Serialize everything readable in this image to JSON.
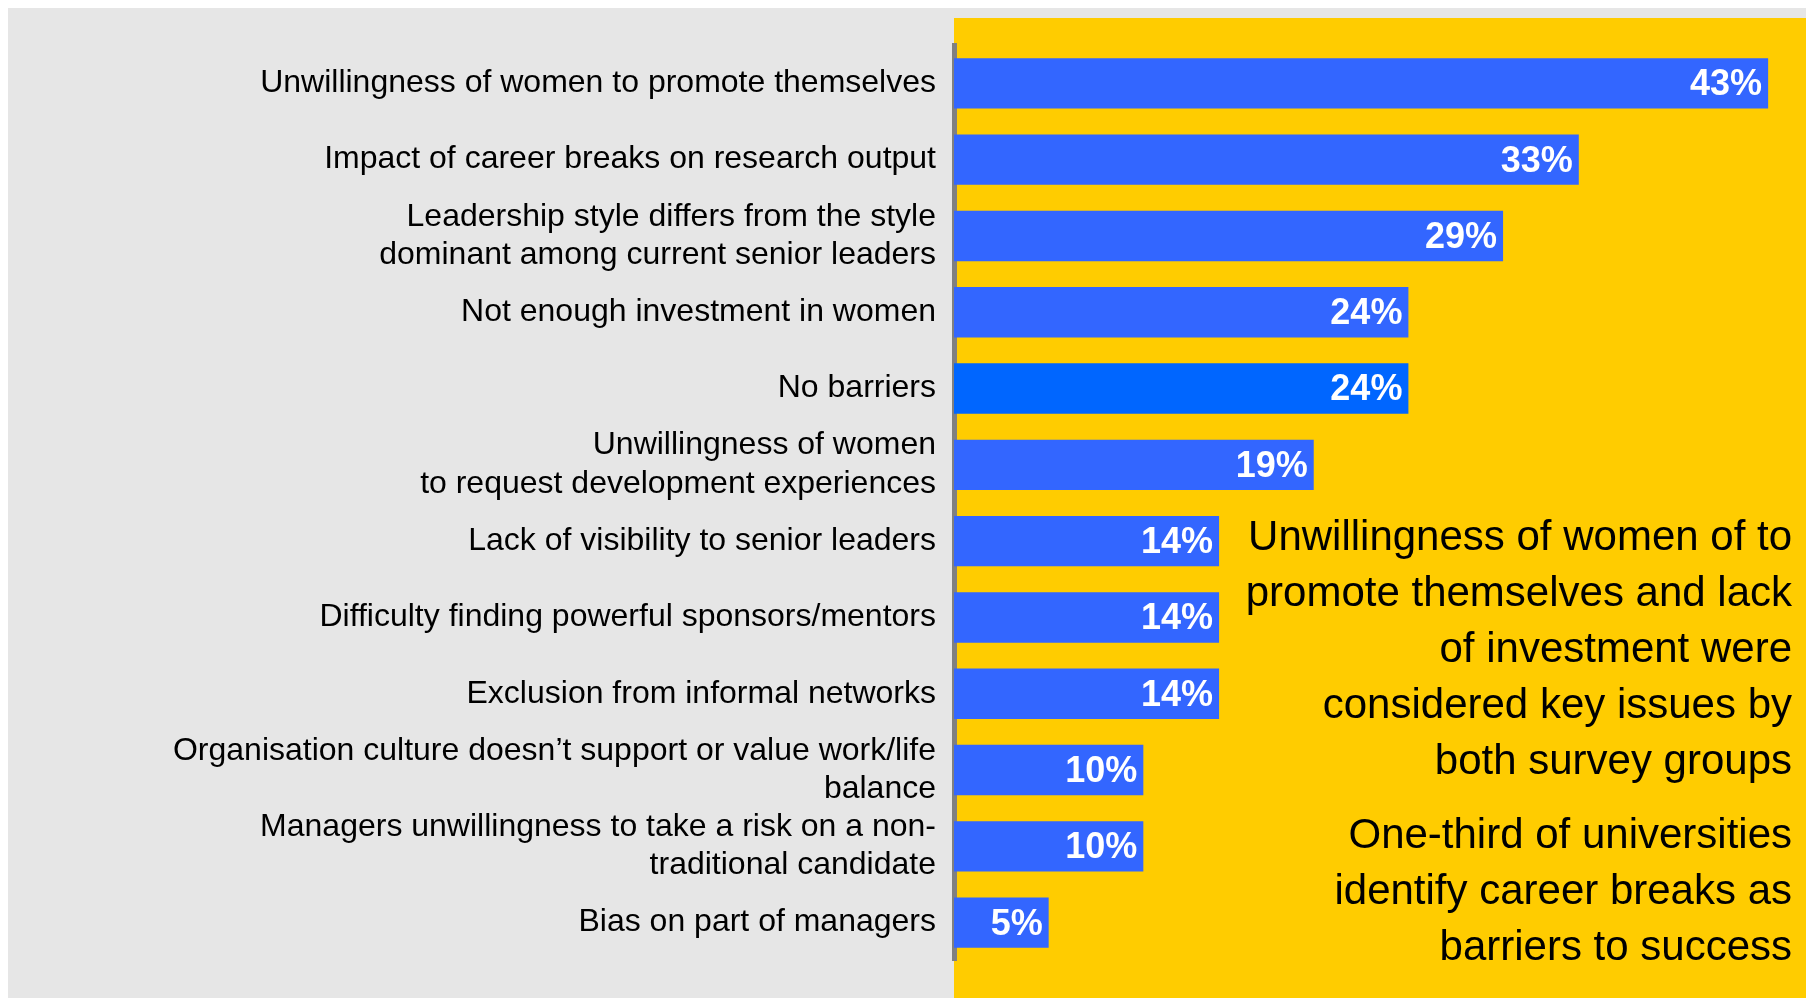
{
  "chart_data": {
    "type": "bar",
    "orientation": "horizontal",
    "categories": [
      "Unwillingness of women to promote themselves",
      "Impact of career breaks on research output",
      "Leadership style differs from the style\ndominant among current senior leaders",
      "Not enough investment in women",
      "No barriers",
      "Unwillingness of women\nto request development experiences",
      "Lack of visibility to senior leaders",
      "Difficulty finding powerful sponsors/mentors",
      "Exclusion from informal networks",
      "Organisation culture doesn’t support or value work/life\nbalance",
      "Managers unwillingness to take a risk on a non-\ntraditional candidate",
      "Bias on part of managers"
    ],
    "values": [
      43,
      33,
      29,
      24,
      24,
      19,
      14,
      14,
      14,
      10,
      10,
      5
    ],
    "colors": [
      "#3366ff",
      "#3366ff",
      "#3366ff",
      "#3366ff",
      "#0066ff",
      "#3366ff",
      "#3366ff",
      "#3366ff",
      "#3366ff",
      "#3366ff",
      "#3366ff",
      "#3366ff"
    ],
    "value_labels": [
      "43%",
      "33%",
      "29%",
      "24%",
      "24%",
      "19%",
      "14%",
      "14%",
      "14%",
      "10%",
      "10%",
      "5%"
    ],
    "grid": false,
    "legend": false,
    "annotations": [
      "Unwillingness of women of to promote themselves and lack of investment were considered key issues by both survey groups",
      "One-third of universities identify career breaks as barriers to success"
    ]
  }
}
